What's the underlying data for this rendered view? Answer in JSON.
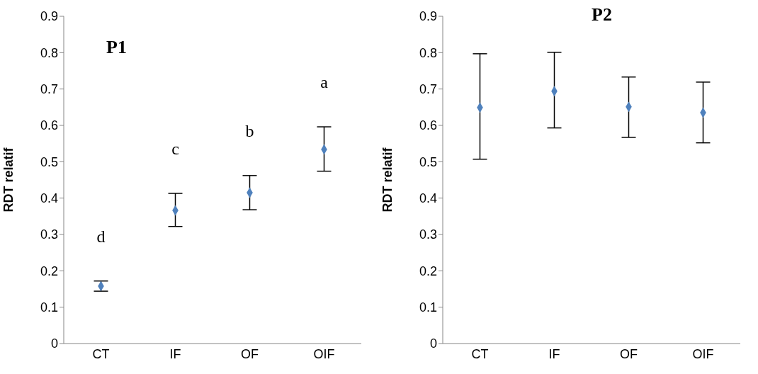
{
  "chart_data": [
    {
      "type": "scatter",
      "title": "P1",
      "ylabel": "RDT relatif",
      "categories": [
        "CT",
        "IF",
        "OF",
        "OIF"
      ],
      "marker": "diamond",
      "color": "#4f81bd",
      "values": [
        0.158,
        0.366,
        0.415,
        0.534
      ],
      "errors": [
        [
          0.144,
          0.172
        ],
        [
          0.322,
          0.413
        ],
        [
          0.368,
          0.462
        ],
        [
          0.474,
          0.596
        ]
      ],
      "ylim": [
        0,
        0.9
      ],
      "yticks": [
        0,
        0.1,
        0.2,
        0.3,
        0.4,
        0.5,
        0.6,
        0.7,
        0.8,
        0.9
      ],
      "annotations": [
        "d",
        "c",
        "b",
        "a"
      ]
    },
    {
      "type": "scatter",
      "title": "P2",
      "ylabel": "RDT relatif",
      "categories": [
        "CT",
        "IF",
        "OF",
        "OIF"
      ],
      "marker": "diamond",
      "color": "#4f81bd",
      "values": [
        0.649,
        0.694,
        0.651,
        0.635
      ],
      "errors": [
        [
          0.507,
          0.797
        ],
        [
          0.593,
          0.801
        ],
        [
          0.567,
          0.733
        ],
        [
          0.552,
          0.719
        ]
      ],
      "ylim": [
        0,
        0.9
      ],
      "yticks": [
        0,
        0.1,
        0.2,
        0.3,
        0.4,
        0.5,
        0.6,
        0.7,
        0.8,
        0.9
      ]
    }
  ]
}
